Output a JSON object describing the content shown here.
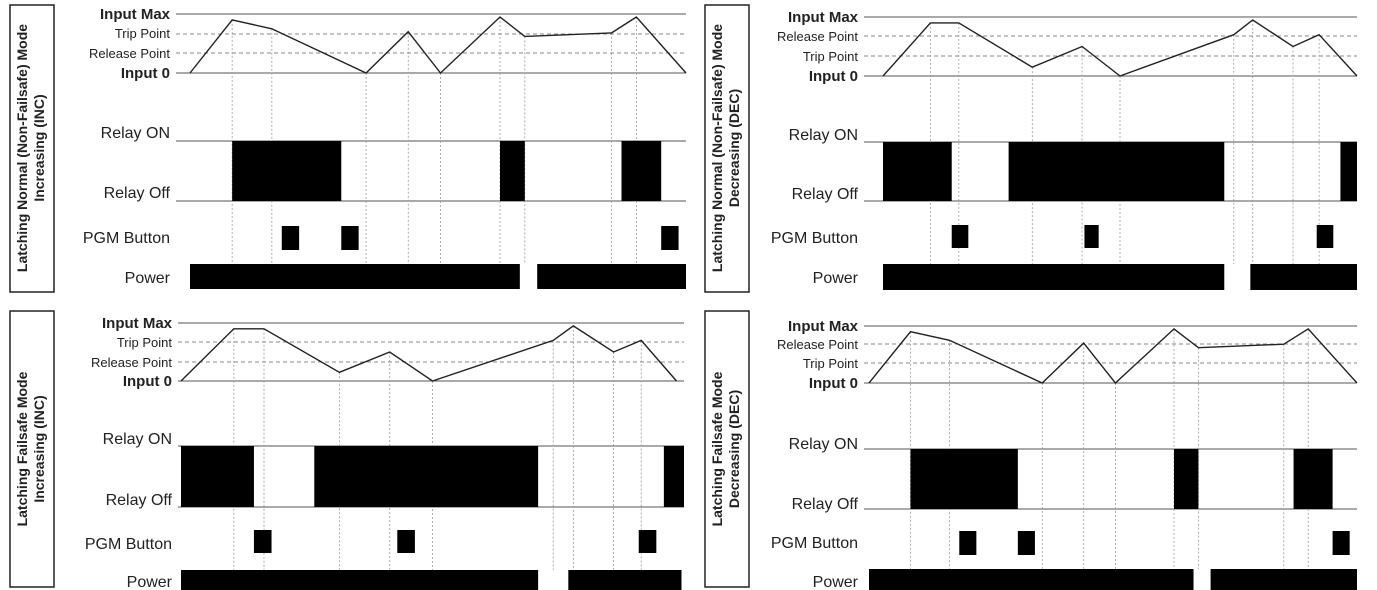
{
  "panels": [
    {
      "side_label_line1": "Latching Normal (Non-Failsafe) Mode",
      "side_label_line2": "Increasing (INC)",
      "levels": {
        "max": "Input Max",
        "upper": "Trip Point",
        "lower": "Release Point",
        "zero": "Input 0"
      },
      "signals": {
        "relay_on": "Relay ON",
        "relay_off": "Relay Off",
        "pgm": "PGM Button",
        "power": "Power"
      },
      "input": [
        [
          0,
          0
        ],
        [
          0.085,
          0.9
        ],
        [
          0.165,
          0.75
        ],
        [
          0.355,
          0
        ],
        [
          0.44,
          0.7
        ],
        [
          0.505,
          0
        ],
        [
          0.625,
          0.95
        ],
        [
          0.675,
          0.62
        ],
        [
          0.85,
          0.68
        ],
        [
          0.9,
          0.95
        ],
        [
          1,
          0
        ]
      ],
      "relay_on": [
        [
          0.085,
          0.305
        ],
        [
          0.625,
          0.675
        ],
        [
          0.87,
          0.95
        ]
      ],
      "pgm": [
        [
          0.185,
          0.22
        ],
        [
          0.305,
          0.34
        ],
        [
          0.95,
          0.985
        ]
      ],
      "power": [
        [
          0,
          0.665
        ],
        [
          0.7,
          1.0
        ]
      ]
    },
    {
      "side_label_line1": "Latching Normal (Non-Failsafe) Mode",
      "side_label_line2": "Decreasing (DEC)",
      "levels": {
        "max": "Input Max",
        "upper": "Release Point",
        "lower": "Trip Point",
        "zero": "Input 0"
      },
      "signals": {
        "relay_on": "Relay ON",
        "relay_off": "Relay Off",
        "pgm": "PGM Button",
        "power": "Power"
      },
      "input": [
        [
          0,
          0
        ],
        [
          0.1,
          0.9
        ],
        [
          0.16,
          0.9
        ],
        [
          0.315,
          0.15
        ],
        [
          0.42,
          0.5
        ],
        [
          0.5,
          0
        ],
        [
          0.74,
          0.7
        ],
        [
          0.78,
          0.95
        ],
        [
          0.865,
          0.5
        ],
        [
          0.92,
          0.7
        ],
        [
          1,
          0
        ]
      ],
      "relay_on": [
        [
          0,
          0.145
        ],
        [
          0.265,
          0.72
        ],
        [
          0.965,
          1.0
        ]
      ],
      "pgm": [
        [
          0.145,
          0.18
        ],
        [
          0.425,
          0.455
        ],
        [
          0.915,
          0.95
        ]
      ],
      "power": [
        [
          0,
          0.72
        ],
        [
          0.775,
          1.0
        ]
      ]
    },
    {
      "side_label_line1": "Latching Failsafe Mode",
      "side_label_line2": "Increasing (INC)",
      "levels": {
        "max": "Input Max",
        "upper": "Trip Point",
        "lower": "Release Point",
        "zero": "Input 0"
      },
      "signals": {
        "relay_on": "Relay ON",
        "relay_off": "Relay Off",
        "pgm": "PGM Button",
        "power": "Power"
      },
      "input": [
        [
          0,
          0
        ],
        [
          0.105,
          0.9
        ],
        [
          0.165,
          0.9
        ],
        [
          0.315,
          0.15
        ],
        [
          0.415,
          0.5
        ],
        [
          0.5,
          0
        ],
        [
          0.74,
          0.7
        ],
        [
          0.78,
          0.95
        ],
        [
          0.86,
          0.5
        ],
        [
          0.915,
          0.7
        ],
        [
          0.985,
          0
        ]
      ],
      "relay_on": [
        [
          0,
          0.145
        ],
        [
          0.265,
          0.71
        ],
        [
          0.96,
          1.0
        ]
      ],
      "pgm": [
        [
          0.145,
          0.18
        ],
        [
          0.43,
          0.465
        ],
        [
          0.91,
          0.945
        ]
      ],
      "power": [
        [
          0,
          0.71
        ],
        [
          0.77,
          0.995
        ]
      ]
    },
    {
      "side_label_line1": "Latching Failsafe Mode",
      "side_label_line2": "Decreasing (DEC)",
      "levels": {
        "max": "Input Max",
        "upper": "Release Point",
        "lower": "Trip Point",
        "zero": "Input 0"
      },
      "signals": {
        "relay_on": "Relay ON",
        "relay_off": "Relay Off",
        "pgm": "PGM Button",
        "power": "Power"
      },
      "input": [
        [
          0,
          0
        ],
        [
          0.085,
          0.9
        ],
        [
          0.165,
          0.75
        ],
        [
          0.355,
          0
        ],
        [
          0.44,
          0.7
        ],
        [
          0.505,
          0
        ],
        [
          0.625,
          0.95
        ],
        [
          0.675,
          0.62
        ],
        [
          0.85,
          0.68
        ],
        [
          0.9,
          0.95
        ],
        [
          1,
          0
        ]
      ],
      "relay_on": [
        [
          0.085,
          0.305
        ],
        [
          0.625,
          0.675
        ],
        [
          0.87,
          0.95
        ]
      ],
      "pgm": [
        [
          0.185,
          0.22
        ],
        [
          0.305,
          0.34
        ],
        [
          0.95,
          0.985
        ]
      ],
      "power": [
        [
          0,
          0.665
        ],
        [
          0.7,
          1.0
        ]
      ]
    }
  ],
  "colors": {
    "line": "#222222",
    "fill": "#000000",
    "dashed": "#888888"
  }
}
